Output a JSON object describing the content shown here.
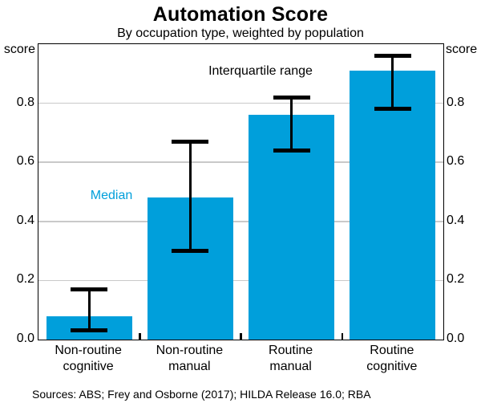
{
  "header": {
    "title": "Automation Score",
    "subtitle": "By occupation type, weighted by population"
  },
  "axis": {
    "unit_left": "score",
    "unit_right": "score"
  },
  "annotations": {
    "iqr_label": "Interquartile range",
    "median_label": "Median"
  },
  "footer": {
    "sources": "Sources: ABS; Frey and Osborne (2017); HILDA Release 16.0; RBA"
  },
  "colors": {
    "bar": "#009FDB",
    "median_text": "#009FDB",
    "gridline": "#C9C9C9",
    "axis": "#000000",
    "error_bar": "#000000"
  },
  "chart_data": {
    "type": "bar",
    "title": "Automation Score",
    "subtitle": "By occupation type, weighted by population",
    "xlabel": "",
    "ylabel": "score",
    "ylim": [
      0,
      1.0
    ],
    "yticks": [
      0.0,
      0.2,
      0.4,
      0.6,
      0.8
    ],
    "grid": true,
    "legend_position": "none",
    "categories": [
      "Non-routine cognitive",
      "Non-routine manual",
      "Routine manual",
      "Routine cognitive"
    ],
    "category_label_lines": [
      [
        "Non-routine",
        "cognitive"
      ],
      [
        "Non-routine",
        "manual"
      ],
      [
        "Routine",
        "manual"
      ],
      [
        "Routine",
        "cognitive"
      ]
    ],
    "series": [
      {
        "name": "Median",
        "values": [
          0.08,
          0.48,
          0.76,
          0.91
        ]
      }
    ],
    "error_bars": {
      "name": "Interquartile range",
      "low": [
        0.03,
        0.3,
        0.64,
        0.78
      ],
      "high": [
        0.17,
        0.67,
        0.82,
        0.96
      ]
    }
  }
}
